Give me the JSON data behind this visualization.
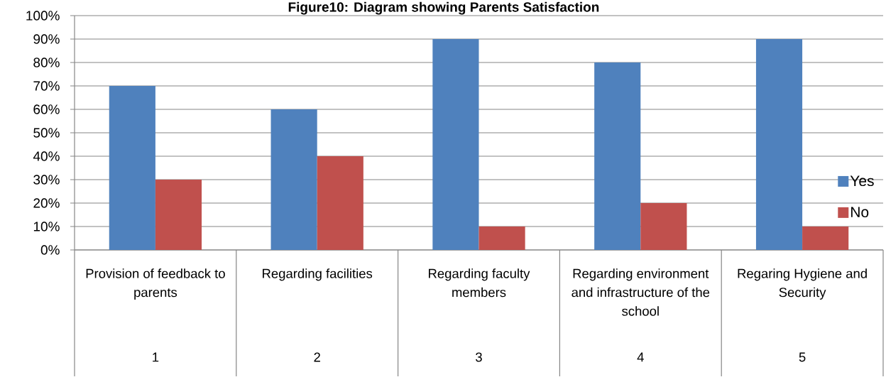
{
  "chart_data": {
    "type": "bar",
    "title": "Figure10: Diagram showing Parents Satisfaction",
    "categories": [
      "Provision of feedback to parents",
      "Regarding facilities",
      "Regarding faculty members",
      "Regarding environment and infrastructure of the school",
      "Regaring Hygiene and Security"
    ],
    "series": [
      {
        "name": "Yes",
        "color": "#4f81bd",
        "values": [
          70,
          60,
          90,
          80,
          90
        ]
      },
      {
        "name": "No",
        "color": "#c0504d",
        "values": [
          30,
          40,
          10,
          20,
          10
        ]
      }
    ],
    "ylim": [
      0,
      100
    ],
    "yticks": [
      {
        "value": 0,
        "label": "0%"
      },
      {
        "value": 10,
        "label": "10%"
      },
      {
        "value": 20,
        "label": "20%"
      },
      {
        "value": 30,
        "label": "30%"
      },
      {
        "value": 40,
        "label": "40%"
      },
      {
        "value": 50,
        "label": "50%"
      },
      {
        "value": 60,
        "label": "60%"
      },
      {
        "value": 70,
        "label": "70%"
      },
      {
        "value": 80,
        "label": "80%"
      },
      {
        "value": 90,
        "label": "90%"
      },
      {
        "value": 100,
        "label": "100%"
      }
    ],
    "grid": "y",
    "legend": "right",
    "annotations": [
      "1",
      "2",
      "3",
      "4",
      "5"
    ]
  }
}
